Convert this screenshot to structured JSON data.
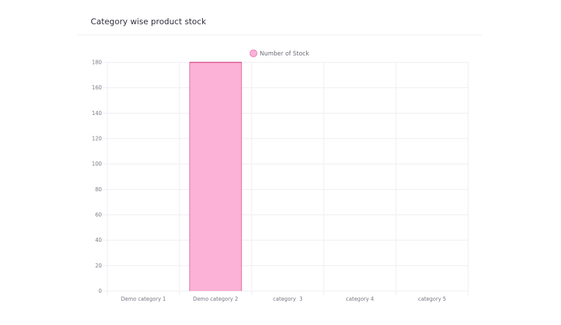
{
  "card": {
    "title": "Category wise product stock"
  },
  "colors": {
    "bar_fill": "#fcb1d6",
    "bar_stroke": "#d6568f",
    "legend_fill": "#fcb1d6",
    "legend_stroke": "#e983b5",
    "grid": "#eeeef2",
    "axis_text": "#777783"
  },
  "chart_data": {
    "type": "bar",
    "categories": [
      "Demo category 1",
      "Demo category 2",
      "category  3",
      "category 4",
      "category 5"
    ],
    "series": [
      {
        "name": "Number of Stock",
        "values": [
          0,
          180,
          0,
          0,
          0
        ]
      }
    ],
    "ylim": [
      0,
      180
    ],
    "yticks": [
      0,
      20,
      40,
      60,
      80,
      100,
      120,
      140,
      160,
      180
    ],
    "grid": true,
    "legend_position": "top-center"
  }
}
